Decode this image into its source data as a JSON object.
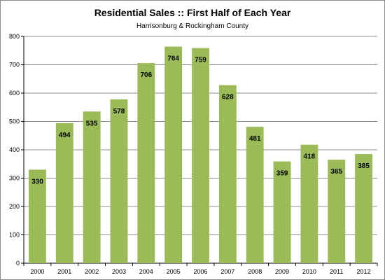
{
  "chart_data": {
    "type": "bar",
    "title": "Residential Sales  ::  First Half of Each Year",
    "subtitle": "Harrisonburg & Rockingham County",
    "xlabel": "",
    "ylabel": "",
    "categories": [
      "2000",
      "2001",
      "2002",
      "2003",
      "2004",
      "2005",
      "2006",
      "2007",
      "2008",
      "2009",
      "2010",
      "2011",
      "2012"
    ],
    "values": [
      330,
      494,
      535,
      578,
      706,
      764,
      759,
      628,
      481,
      359,
      418,
      365,
      385
    ],
    "ylim": [
      0,
      800
    ],
    "yticks": [
      0,
      100,
      200,
      300,
      400,
      500,
      600,
      700,
      800
    ],
    "grid": true,
    "legend": "none",
    "bar_color": "#9bbb59",
    "grid_color": "#8c8c8c"
  }
}
